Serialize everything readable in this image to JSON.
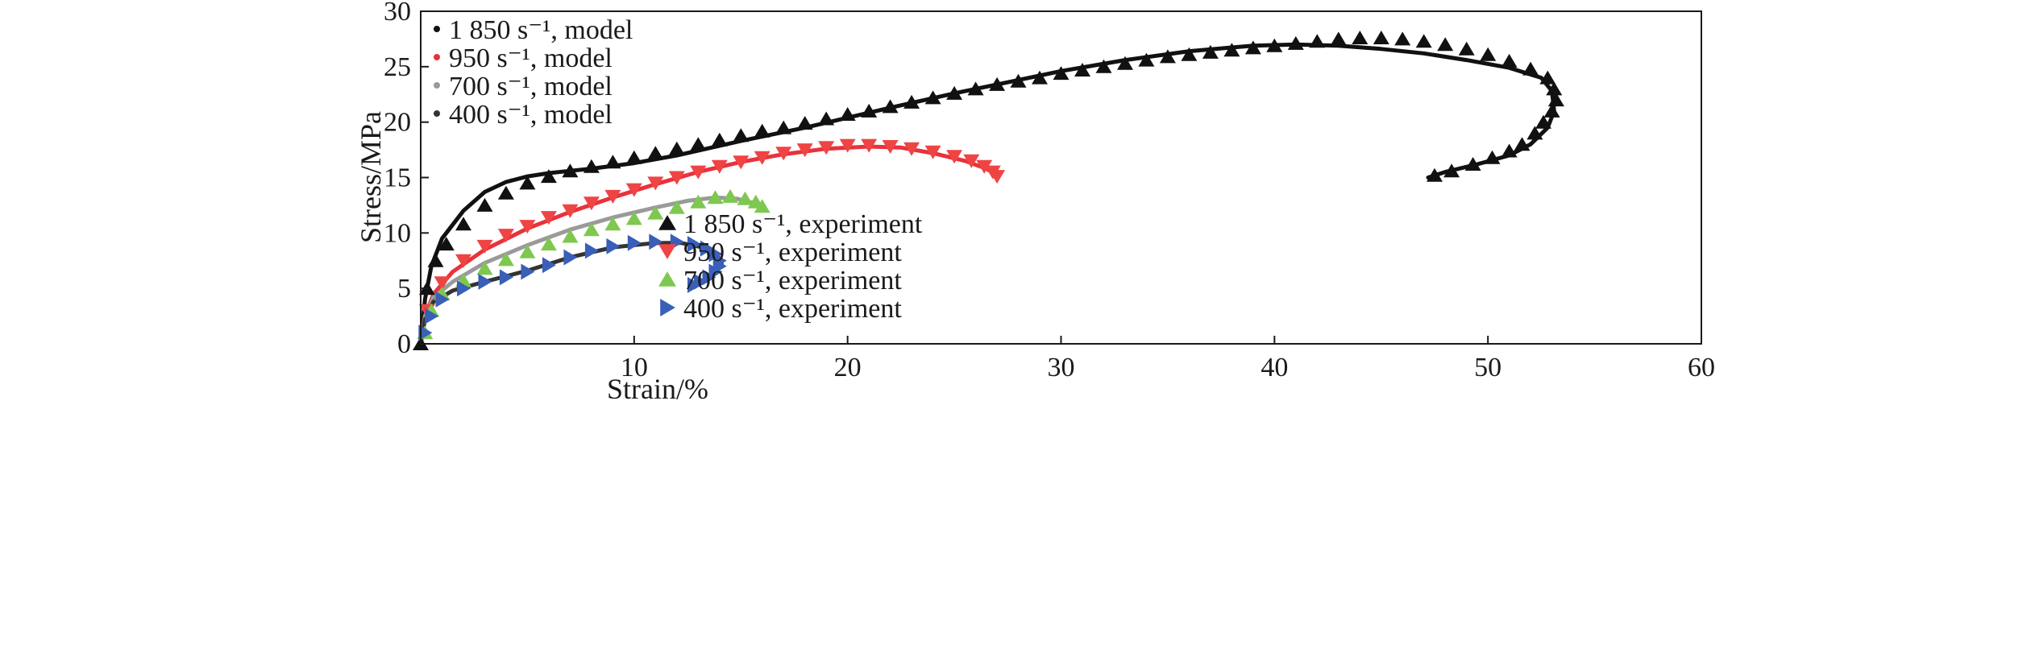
{
  "chart_data": {
    "type": "scatter",
    "xlabel": "Strain/%",
    "ylabel": "Stress/MPa",
    "xlim": [
      0,
      60
    ],
    "ylim": [
      0,
      30
    ],
    "xticks": [
      10,
      20,
      30,
      40,
      50,
      60
    ],
    "yticks": [
      0,
      5,
      10,
      15,
      20,
      25,
      30
    ],
    "grid": false,
    "legend_placement": [
      "top-left",
      "center-right"
    ],
    "model_legend": [
      {
        "label": "1 850 s⁻¹, model",
        "color": "#111111"
      },
      {
        "label": "950 s⁻¹, model",
        "color": "#e8323c"
      },
      {
        "label": "700 s⁻¹, model",
        "color": "#9a9a9a"
      },
      {
        "label": "400 s⁻¹, model",
        "color": "#333333"
      }
    ],
    "experiment_legend": [
      {
        "label": "1 850 s⁻¹, experiment",
        "color": "#111111",
        "marker": "triangle-up"
      },
      {
        "label": "950 s⁻¹, experiment",
        "color": "#ef4444",
        "marker": "triangle-down"
      },
      {
        "label": "700 s⁻¹, experiment",
        "color": "#7ec850",
        "marker": "triangle-up"
      },
      {
        "label": "400 s⁻¹, experiment",
        "color": "#3a5fb8",
        "marker": "triangle-right"
      }
    ],
    "model_series": [
      {
        "color": "#111111",
        "points": [
          [
            0,
            0
          ],
          [
            0.2,
            4
          ],
          [
            0.5,
            7
          ],
          [
            1,
            9.5
          ],
          [
            2,
            12
          ],
          [
            3,
            13.7
          ],
          [
            4,
            14.6
          ],
          [
            5,
            15.1
          ],
          [
            6,
            15.4
          ],
          [
            7,
            15.6
          ],
          [
            8,
            15.8
          ],
          [
            10,
            16.3
          ],
          [
            12,
            17
          ],
          [
            15,
            18.3
          ],
          [
            18,
            19.5
          ],
          [
            20,
            20.4
          ],
          [
            22,
            21.3
          ],
          [
            25,
            22.6
          ],
          [
            28,
            23.8
          ],
          [
            30,
            24.6
          ],
          [
            33,
            25.6
          ],
          [
            36,
            26.4
          ],
          [
            39,
            26.9
          ],
          [
            41,
            27
          ],
          [
            43,
            26.9
          ],
          [
            45,
            26.6
          ],
          [
            47,
            26.2
          ],
          [
            49,
            25.6
          ],
          [
            51,
            24.9
          ],
          [
            52.5,
            24
          ],
          [
            53,
            22.8
          ],
          [
            53.1,
            21
          ],
          [
            52.8,
            19.5
          ],
          [
            52,
            18
          ],
          [
            51,
            17
          ],
          [
            49.5,
            16.2
          ],
          [
            48,
            15.5
          ],
          [
            47.2,
            15
          ]
        ]
      },
      {
        "color": "#e8323c",
        "points": [
          [
            0,
            0
          ],
          [
            0.2,
            2.5
          ],
          [
            0.6,
            4.5
          ],
          [
            1.5,
            6.5
          ],
          [
            3,
            8.5
          ],
          [
            5,
            10.4
          ],
          [
            7,
            11.9
          ],
          [
            9,
            13.2
          ],
          [
            11,
            14.4
          ],
          [
            13,
            15.5
          ],
          [
            15,
            16.4
          ],
          [
            17,
            17.1
          ],
          [
            19,
            17.6
          ],
          [
            21,
            17.8
          ],
          [
            22.5,
            17.7
          ],
          [
            24,
            17.2
          ],
          [
            25.5,
            16.5
          ],
          [
            26.5,
            15.8
          ],
          [
            27,
            15.2
          ]
        ]
      },
      {
        "color": "#9a9a9a",
        "points": [
          [
            0,
            0
          ],
          [
            0.2,
            2.5
          ],
          [
            0.6,
            4.2
          ],
          [
            1.5,
            5.6
          ],
          [
            3,
            7.3
          ],
          [
            5,
            8.9
          ],
          [
            7,
            10.3
          ],
          [
            9,
            11.4
          ],
          [
            11,
            12.3
          ],
          [
            12.5,
            12.9
          ],
          [
            13.8,
            13.2
          ],
          [
            14.8,
            13.1
          ],
          [
            15.6,
            12.7
          ],
          [
            16,
            12.2
          ]
        ]
      },
      {
        "color": "#333333",
        "points": [
          [
            0,
            0
          ],
          [
            0.2,
            2.2
          ],
          [
            0.6,
            3.8
          ],
          [
            1.5,
            4.8
          ],
          [
            3,
            5.6
          ],
          [
            5,
            6.6
          ],
          [
            7,
            7.8
          ],
          [
            9,
            8.7
          ],
          [
            11,
            9.1
          ],
          [
            12.2,
            9.1
          ],
          [
            13.2,
            8.7
          ],
          [
            13.9,
            8
          ],
          [
            14.1,
            7.2
          ],
          [
            13.8,
            6.4
          ],
          [
            13.2,
            5.6
          ],
          [
            12.8,
            5.2
          ]
        ]
      }
    ],
    "experiment_series": [
      {
        "color": "#111111",
        "marker": "triangle-up",
        "points": [
          [
            0,
            0
          ],
          [
            0.3,
            5
          ],
          [
            0.7,
            7.5
          ],
          [
            1.2,
            9
          ],
          [
            2,
            10.8
          ],
          [
            3,
            12.5
          ],
          [
            4,
            13.6
          ],
          [
            5,
            14.5
          ],
          [
            6,
            15.1
          ],
          [
            7,
            15.6
          ],
          [
            8,
            16
          ],
          [
            9,
            16.4
          ],
          [
            10,
            16.8
          ],
          [
            11,
            17.2
          ],
          [
            12,
            17.6
          ],
          [
            13,
            18
          ],
          [
            14,
            18.4
          ],
          [
            15,
            18.8
          ],
          [
            16,
            19.2
          ],
          [
            17,
            19.5
          ],
          [
            18,
            19.9
          ],
          [
            19,
            20.3
          ],
          [
            20,
            20.7
          ],
          [
            21,
            21
          ],
          [
            22,
            21.4
          ],
          [
            23,
            21.8
          ],
          [
            24,
            22.2
          ],
          [
            25,
            22.6
          ],
          [
            26,
            23
          ],
          [
            27,
            23.4
          ],
          [
            28,
            23.7
          ],
          [
            29,
            24
          ],
          [
            30,
            24.4
          ],
          [
            31,
            24.7
          ],
          [
            32,
            25
          ],
          [
            33,
            25.3
          ],
          [
            34,
            25.6
          ],
          [
            35,
            25.9
          ],
          [
            36,
            26.1
          ],
          [
            37,
            26.3
          ],
          [
            38,
            26.5
          ],
          [
            39,
            26.7
          ],
          [
            40,
            26.9
          ],
          [
            41,
            27.1
          ],
          [
            42,
            27.3
          ],
          [
            43,
            27.5
          ],
          [
            44,
            27.6
          ],
          [
            45,
            27.6
          ],
          [
            46,
            27.5
          ],
          [
            47,
            27.3
          ],
          [
            48,
            27
          ],
          [
            49,
            26.6
          ],
          [
            50,
            26.1
          ],
          [
            51,
            25.5
          ],
          [
            52,
            24.8
          ],
          [
            52.8,
            24
          ],
          [
            53.1,
            23
          ],
          [
            53.2,
            22
          ],
          [
            53,
            21
          ],
          [
            52.6,
            20
          ],
          [
            52.2,
            19
          ],
          [
            51.6,
            18
          ],
          [
            51,
            17.4
          ],
          [
            50.2,
            16.8
          ],
          [
            49.3,
            16.2
          ],
          [
            48.3,
            15.6
          ],
          [
            47.5,
            15.2
          ]
        ]
      },
      {
        "color": "#ef4444",
        "marker": "triangle-down",
        "points": [
          [
            0.3,
            3
          ],
          [
            1,
            5.5
          ],
          [
            2,
            7.5
          ],
          [
            3,
            8.8
          ],
          [
            4,
            9.8
          ],
          [
            5,
            10.6
          ],
          [
            6,
            11.4
          ],
          [
            7,
            12
          ],
          [
            8,
            12.7
          ],
          [
            9,
            13.3
          ],
          [
            10,
            13.9
          ],
          [
            11,
            14.5
          ],
          [
            12,
            15
          ],
          [
            13,
            15.5
          ],
          [
            14,
            16
          ],
          [
            15,
            16.4
          ],
          [
            16,
            16.8
          ],
          [
            17,
            17.2
          ],
          [
            18,
            17.5
          ],
          [
            19,
            17.7
          ],
          [
            20,
            17.9
          ],
          [
            21,
            17.9
          ],
          [
            22,
            17.8
          ],
          [
            23,
            17.6
          ],
          [
            24,
            17.3
          ],
          [
            25,
            16.9
          ],
          [
            25.8,
            16.5
          ],
          [
            26.4,
            16
          ],
          [
            26.8,
            15.5
          ],
          [
            27,
            15.1
          ]
        ]
      },
      {
        "color": "#7ec850",
        "marker": "triangle-up",
        "points": [
          [
            0.2,
            1
          ],
          [
            0.5,
            3
          ],
          [
            1,
            4.5
          ],
          [
            2,
            5.7
          ],
          [
            3,
            6.8
          ],
          [
            4,
            7.6
          ],
          [
            5,
            8.3
          ],
          [
            6,
            9
          ],
          [
            7,
            9.7
          ],
          [
            8,
            10.3
          ],
          [
            9,
            10.8
          ],
          [
            10,
            11.3
          ],
          [
            11,
            11.8
          ],
          [
            12,
            12.3
          ],
          [
            13,
            12.8
          ],
          [
            13.8,
            13.2
          ],
          [
            14.5,
            13.3
          ],
          [
            15.2,
            13.1
          ],
          [
            15.7,
            12.8
          ],
          [
            16,
            12.4
          ]
        ]
      },
      {
        "color": "#3a5fb8",
        "marker": "triangle-right",
        "points": [
          [
            0.2,
            1
          ],
          [
            0.5,
            2.5
          ],
          [
            1,
            4
          ],
          [
            2,
            5
          ],
          [
            3,
            5.6
          ],
          [
            4,
            6
          ],
          [
            5,
            6.5
          ],
          [
            6,
            7.1
          ],
          [
            7,
            7.8
          ],
          [
            8,
            8.4
          ],
          [
            9,
            8.8
          ],
          [
            10,
            9.1
          ],
          [
            11,
            9.2
          ],
          [
            12,
            9.2
          ],
          [
            12.8,
            9
          ],
          [
            13.4,
            8.6
          ],
          [
            13.8,
            8.1
          ],
          [
            14,
            7.5
          ],
          [
            14,
            7
          ],
          [
            13.8,
            6.5
          ],
          [
            13.5,
            6
          ],
          [
            13.1,
            5.6
          ],
          [
            12.8,
            5.3
          ]
        ]
      }
    ]
  }
}
